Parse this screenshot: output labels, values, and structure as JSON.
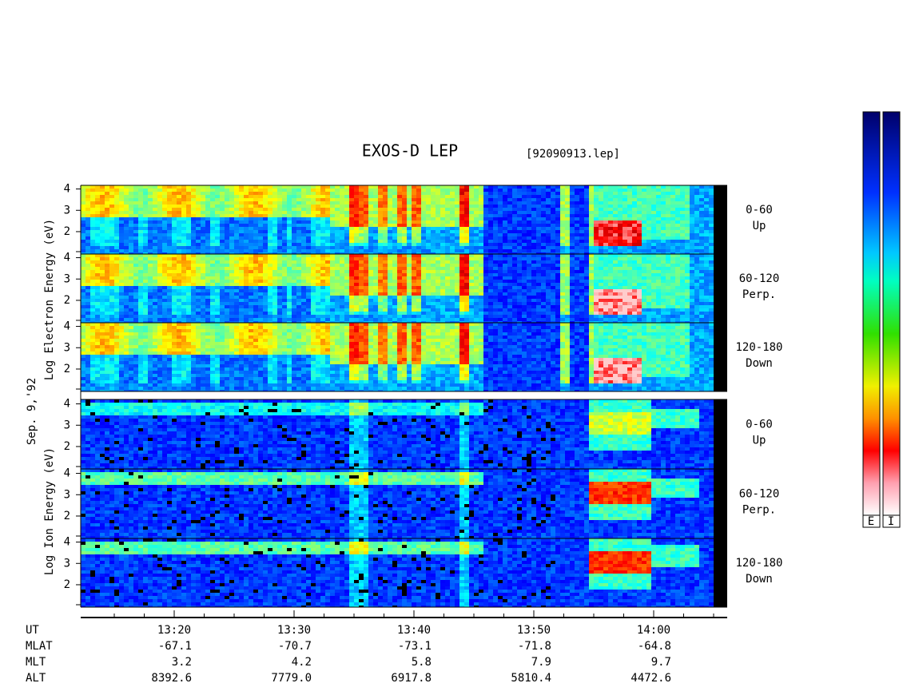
{
  "header": {
    "title": "EXOS-D LEP",
    "file": "[92090913.lep]"
  },
  "y_labels": {
    "electron": "Log Electron Energy (eV)",
    "date": "Sep. 9,'92",
    "ion": "Log Ion Energy (eV)"
  },
  "energy_ticks": [
    4,
    3,
    2
  ],
  "panels": [
    {
      "angle": "0-60",
      "direction": "Up"
    },
    {
      "angle": "60-120",
      "direction": "Perp."
    },
    {
      "angle": "120-180",
      "direction": "Down"
    },
    {
      "angle": "0-60",
      "direction": "Up"
    },
    {
      "angle": "60-120",
      "direction": "Perp."
    },
    {
      "angle": "120-180",
      "direction": "Down"
    }
  ],
  "footer": {
    "rows": [
      {
        "label": "UT",
        "values": [
          "13:20",
          "13:30",
          "13:40",
          "13:50",
          "14:00"
        ]
      },
      {
        "label": "MLAT",
        "values": [
          "-67.1",
          "-70.7",
          "-73.1",
          "-71.8",
          "-64.8"
        ]
      },
      {
        "label": "MLT",
        "values": [
          "3.2",
          "4.2",
          "5.8",
          "7.9",
          "9.7"
        ]
      },
      {
        "label": "ALT",
        "values": [
          "8392.6",
          "7779.0",
          "6917.8",
          "5810.4",
          "4472.6"
        ]
      }
    ]
  },
  "colorbar": {
    "labels": [
      "E",
      "I"
    ]
  }
}
